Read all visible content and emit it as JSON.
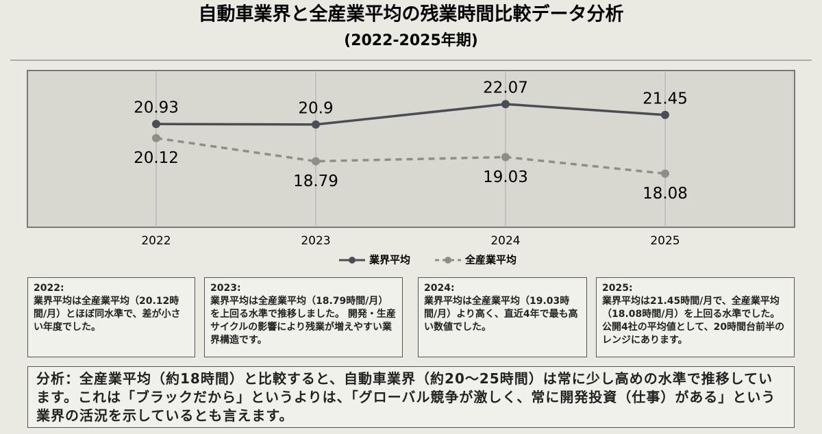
{
  "chart_data": {
    "type": "line",
    "title": "自動車業界と全産業平均の残業時間比較データ分析",
    "subtitle": "(2022-2025年期)",
    "categories": [
      "2022",
      "2023",
      "2024",
      "2025"
    ],
    "series": [
      {
        "name": "業界平均",
        "color": "#4a4d55",
        "dashed": false,
        "values": [
          20.93,
          20.9,
          22.07,
          21.45
        ]
      },
      {
        "name": "全産業平均",
        "color": "#8e8e86",
        "dashed": true,
        "values": [
          20.12,
          18.79,
          19.03,
          18.08
        ]
      }
    ],
    "ylim": [
      15,
      24
    ],
    "grid": true,
    "legend": "bottom"
  },
  "notes": [
    {
      "heading": "2022:",
      "text": "業界平均は全産業平均（20.12時間/月）とほぼ同水準で、差が小さい年度でした。"
    },
    {
      "heading": "2023:",
      "text": "業界平均は全産業平均（18.79時間/月）を上回る水準で推移しました。 開発・生産サイクルの影響により残業が増えやすい業界構造です。"
    },
    {
      "heading": "2024:",
      "text": "業界平均は全産業平均（19.03時間/月）より高く、直近4年で最も高い数値でした。"
    },
    {
      "heading": "2025:",
      "text": "業界平均は21.45時間/月で、全産業平均（18.08時間/月）を上回る水準でした。公開4社の平均値として、20時間台前半のレンジにあります。"
    }
  ],
  "analysis": "分析：全産業平均（約18時間）と比較すると、自動車業界（約20〜25時間）は常に少し高めの水準で推移しています。これは「ブラックだから」というよりは、「グローバル競争が激しく、常に開発投資（仕事）がある」という業界の活況を示しているとも言えます。"
}
